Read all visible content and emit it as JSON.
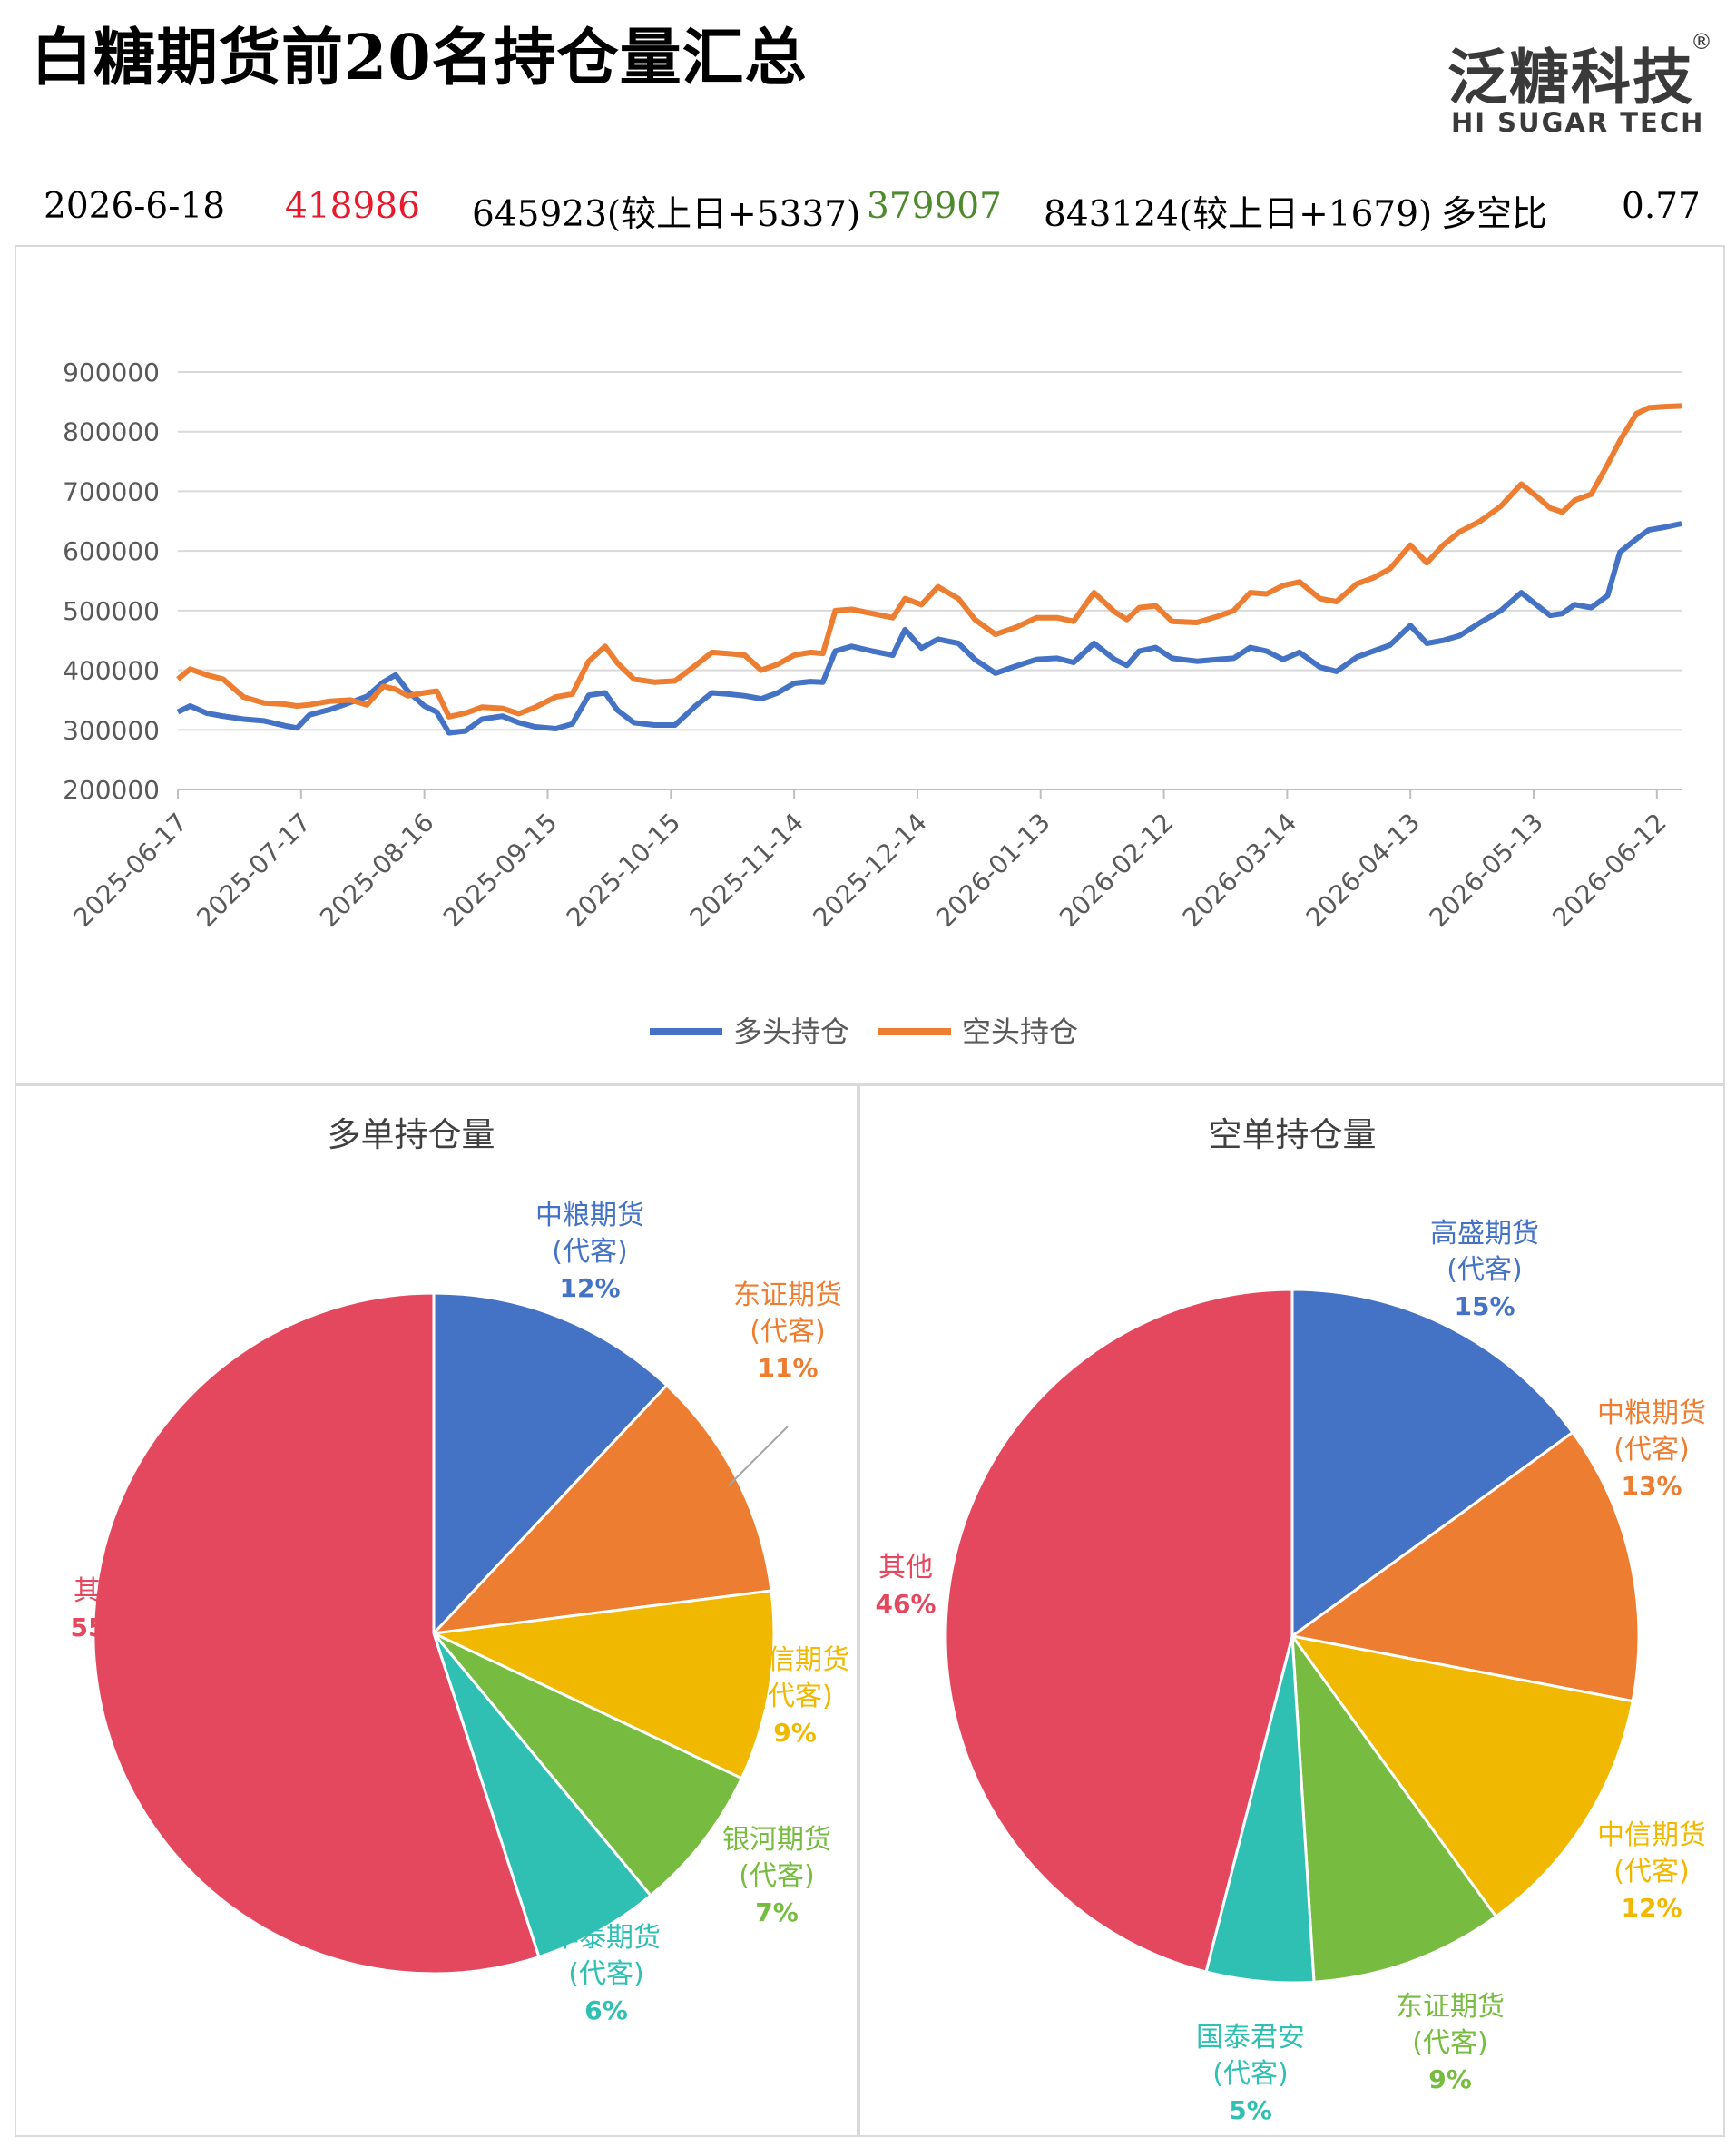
{
  "header": {
    "title": "白糖期货前20名持仓量汇总",
    "logo_cn": "泛糖科技",
    "logo_reg": "®",
    "logo_en": "HI SUGAR TECH"
  },
  "summary": {
    "date": "2026-6-18",
    "long_change": "418986",
    "long_total": "645923(较上日+5337)",
    "short_change": "379907",
    "short_total": "843124(较上日+1679)",
    "ratio_label": "多空比",
    "ratio_value": "0.77"
  },
  "colors": {
    "long": "#4472c4",
    "short": "#ed7d31",
    "red": "#e8192c",
    "green": "#4e8a2c",
    "grid": "#d9d9d9"
  },
  "chart_data": [
    {
      "type": "line",
      "title": "",
      "ylim": [
        200000,
        900000
      ],
      "yticks": [
        "900000",
        "800000",
        "700000",
        "600000",
        "500000",
        "400000",
        "300000",
        "200000"
      ],
      "xticks": [
        "2025-06-17",
        "2025-07-17",
        "2025-08-16",
        "2025-09-15",
        "2025-10-15",
        "2025-11-14",
        "2025-12-14",
        "2026-01-13",
        "2026-02-12",
        "2026-03-14",
        "2026-04-13",
        "2026-05-13",
        "2026-06-12"
      ],
      "legend_position": "bottom",
      "grid": true,
      "series": [
        {
          "name": "多头持仓",
          "color": "#4472c4",
          "points": [
            [
              "2025-06-17",
              330000
            ],
            [
              "2025-06-20",
              340000
            ],
            [
              "2025-06-24",
              328000
            ],
            [
              "2025-06-28",
              323000
            ],
            [
              "2025-07-03",
              318000
            ],
            [
              "2025-07-08",
              315000
            ],
            [
              "2025-07-13",
              307000
            ],
            [
              "2025-07-16",
              303000
            ],
            [
              "2025-07-19",
              325000
            ],
            [
              "2025-07-24",
              334000
            ],
            [
              "2025-07-29",
              346000
            ],
            [
              "2025-08-02",
              356000
            ],
            [
              "2025-08-06",
              380000
            ],
            [
              "2025-08-09",
              392000
            ],
            [
              "2025-08-12",
              365000
            ],
            [
              "2025-08-16",
              340000
            ],
            [
              "2025-08-19",
              330000
            ],
            [
              "2025-08-22",
              295000
            ],
            [
              "2025-08-26",
              298000
            ],
            [
              "2025-08-30",
              318000
            ],
            [
              "2025-09-04",
              323000
            ],
            [
              "2025-09-08",
              312000
            ],
            [
              "2025-09-12",
              305000
            ],
            [
              "2025-09-17",
              302000
            ],
            [
              "2025-09-21",
              310000
            ],
            [
              "2025-09-25",
              358000
            ],
            [
              "2025-09-29",
              362000
            ],
            [
              "2025-10-02",
              333000
            ],
            [
              "2025-10-06",
              312000
            ],
            [
              "2025-10-11",
              308000
            ],
            [
              "2025-10-16",
              308000
            ],
            [
              "2025-10-21",
              340000
            ],
            [
              "2025-10-25",
              362000
            ],
            [
              "2025-10-29",
              360000
            ],
            [
              "2025-11-02",
              357000
            ],
            [
              "2025-11-06",
              352000
            ],
            [
              "2025-11-10",
              362000
            ],
            [
              "2025-11-14",
              378000
            ],
            [
              "2025-11-18",
              381000
            ],
            [
              "2025-11-21",
              380000
            ],
            [
              "2025-11-24",
              432000
            ],
            [
              "2025-11-28",
              440000
            ],
            [
              "2025-12-03",
              432000
            ],
            [
              "2025-12-08",
              425000
            ],
            [
              "2025-12-11",
              468000
            ],
            [
              "2025-12-15",
              437000
            ],
            [
              "2025-12-19",
              452000
            ],
            [
              "2025-12-24",
              445000
            ],
            [
              "2025-12-28",
              418000
            ],
            [
              "2026-01-02",
              395000
            ],
            [
              "2026-01-07",
              407000
            ],
            [
              "2026-01-12",
              418000
            ],
            [
              "2026-01-17",
              420000
            ],
            [
              "2026-01-21",
              413000
            ],
            [
              "2026-01-26",
              445000
            ],
            [
              "2026-01-31",
              418000
            ],
            [
              "2026-02-03",
              408000
            ],
            [
              "2026-02-06",
              432000
            ],
            [
              "2026-02-10",
              438000
            ],
            [
              "2026-02-14",
              420000
            ],
            [
              "2026-02-20",
              415000
            ],
            [
              "2026-02-25",
              418000
            ],
            [
              "2026-03-01",
              420000
            ],
            [
              "2026-03-05",
              438000
            ],
            [
              "2026-03-09",
              432000
            ],
            [
              "2026-03-13",
              418000
            ],
            [
              "2026-03-17",
              430000
            ],
            [
              "2026-03-22",
              405000
            ],
            [
              "2026-03-26",
              398000
            ],
            [
              "2026-03-31",
              422000
            ],
            [
              "2026-04-04",
              432000
            ],
            [
              "2026-04-08",
              442000
            ],
            [
              "2026-04-13",
              475000
            ],
            [
              "2026-04-17",
              445000
            ],
            [
              "2026-04-21",
              450000
            ],
            [
              "2026-04-25",
              458000
            ],
            [
              "2026-04-30",
              480000
            ],
            [
              "2026-05-05",
              500000
            ],
            [
              "2026-05-10",
              530000
            ],
            [
              "2026-05-14",
              508000
            ],
            [
              "2026-05-17",
              492000
            ],
            [
              "2026-05-20",
              495000
            ],
            [
              "2026-05-23",
              510000
            ],
            [
              "2026-05-27",
              505000
            ],
            [
              "2026-05-31",
              525000
            ],
            [
              "2026-06-03",
              598000
            ],
            [
              "2026-06-07",
              620000
            ],
            [
              "2026-06-10",
              635000
            ],
            [
              "2026-06-14",
              640000
            ],
            [
              "2026-06-18",
              645923
            ]
          ]
        },
        {
          "name": "空头持仓",
          "color": "#ed7d31",
          "points": [
            [
              "2025-06-17",
              385000
            ],
            [
              "2025-06-20",
              402000
            ],
            [
              "2025-06-24",
              392000
            ],
            [
              "2025-06-28",
              385000
            ],
            [
              "2025-07-03",
              355000
            ],
            [
              "2025-07-08",
              345000
            ],
            [
              "2025-07-13",
              343000
            ],
            [
              "2025-07-16",
              340000
            ],
            [
              "2025-07-19",
              342000
            ],
            [
              "2025-07-24",
              348000
            ],
            [
              "2025-07-29",
              350000
            ],
            [
              "2025-08-02",
              342000
            ],
            [
              "2025-08-06",
              373000
            ],
            [
              "2025-08-09",
              368000
            ],
            [
              "2025-08-12",
              357000
            ],
            [
              "2025-08-16",
              362000
            ],
            [
              "2025-08-19",
              365000
            ],
            [
              "2025-08-22",
              322000
            ],
            [
              "2025-08-26",
              328000
            ],
            [
              "2025-08-30",
              338000
            ],
            [
              "2025-09-04",
              336000
            ],
            [
              "2025-09-08",
              327000
            ],
            [
              "2025-09-12",
              338000
            ],
            [
              "2025-09-17",
              355000
            ],
            [
              "2025-09-21",
              360000
            ],
            [
              "2025-09-25",
              415000
            ],
            [
              "2025-09-29",
              440000
            ],
            [
              "2025-10-02",
              412000
            ],
            [
              "2025-10-06",
              385000
            ],
            [
              "2025-10-11",
              380000
            ],
            [
              "2025-10-16",
              382000
            ],
            [
              "2025-10-21",
              408000
            ],
            [
              "2025-10-25",
              430000
            ],
            [
              "2025-10-29",
              428000
            ],
            [
              "2025-11-02",
              425000
            ],
            [
              "2025-11-06",
              400000
            ],
            [
              "2025-11-10",
              410000
            ],
            [
              "2025-11-14",
              425000
            ],
            [
              "2025-11-18",
              430000
            ],
            [
              "2025-11-21",
              428000
            ],
            [
              "2025-11-24",
              500000
            ],
            [
              "2025-11-28",
              502000
            ],
            [
              "2025-12-03",
              495000
            ],
            [
              "2025-12-08",
              488000
            ],
            [
              "2025-12-11",
              520000
            ],
            [
              "2025-12-15",
              510000
            ],
            [
              "2025-12-19",
              540000
            ],
            [
              "2025-12-24",
              520000
            ],
            [
              "2025-12-28",
              485000
            ],
            [
              "2026-01-02",
              460000
            ],
            [
              "2026-01-07",
              472000
            ],
            [
              "2026-01-12",
              488000
            ],
            [
              "2026-01-17",
              488000
            ],
            [
              "2026-01-21",
              482000
            ],
            [
              "2026-01-26",
              530000
            ],
            [
              "2026-01-31",
              498000
            ],
            [
              "2026-02-03",
              485000
            ],
            [
              "2026-02-06",
              505000
            ],
            [
              "2026-02-10",
              508000
            ],
            [
              "2026-02-14",
              482000
            ],
            [
              "2026-02-20",
              480000
            ],
            [
              "2026-02-25",
              490000
            ],
            [
              "2026-03-01",
              500000
            ],
            [
              "2026-03-05",
              530000
            ],
            [
              "2026-03-09",
              528000
            ],
            [
              "2026-03-13",
              542000
            ],
            [
              "2026-03-17",
              548000
            ],
            [
              "2026-03-22",
              520000
            ],
            [
              "2026-03-26",
              515000
            ],
            [
              "2026-03-31",
              545000
            ],
            [
              "2026-04-04",
              555000
            ],
            [
              "2026-04-08",
              570000
            ],
            [
              "2026-04-13",
              610000
            ],
            [
              "2026-04-17",
              580000
            ],
            [
              "2026-04-21",
              610000
            ],
            [
              "2026-04-25",
              632000
            ],
            [
              "2026-04-30",
              650000
            ],
            [
              "2026-05-05",
              675000
            ],
            [
              "2026-05-10",
              712000
            ],
            [
              "2026-05-14",
              690000
            ],
            [
              "2026-05-17",
              672000
            ],
            [
              "2026-05-20",
              665000
            ],
            [
              "2026-05-23",
              685000
            ],
            [
              "2026-05-27",
              695000
            ],
            [
              "2026-05-31",
              745000
            ],
            [
              "2026-06-03",
              785000
            ],
            [
              "2026-06-07",
              830000
            ],
            [
              "2026-06-10",
              840000
            ],
            [
              "2026-06-14",
              842000
            ],
            [
              "2026-06-18",
              843124
            ]
          ]
        }
      ]
    },
    {
      "type": "pie",
      "title": "多单持仓量",
      "slices": [
        {
          "label": "中粮期货",
          "sub": "(代客)",
          "pct": "12%",
          "value": 12,
          "color": "#4472c4"
        },
        {
          "label": "东证期货",
          "sub": "(代客)",
          "pct": "11%",
          "value": 11,
          "color": "#ed7d31"
        },
        {
          "label": "中信期货",
          "sub": "(代客)",
          "pct": "9%",
          "value": 9,
          "color": "#f0b800"
        },
        {
          "label": "银河期货",
          "sub": "(代客)",
          "pct": "7%",
          "value": 7,
          "color": "#77bc41"
        },
        {
          "label": "华泰期货",
          "sub": "(代客)",
          "pct": "6%",
          "value": 6,
          "color": "#2fc0b3"
        },
        {
          "label": "其他",
          "sub": "",
          "pct": "55%",
          "value": 55,
          "color": "#e4485f"
        }
      ]
    },
    {
      "type": "pie",
      "title": "空单持仓量",
      "slices": [
        {
          "label": "高盛期货",
          "sub": "(代客)",
          "pct": "15%",
          "value": 15,
          "color": "#4472c4"
        },
        {
          "label": "中粮期货",
          "sub": "(代客)",
          "pct": "13%",
          "value": 13,
          "color": "#ed7d31"
        },
        {
          "label": "中信期货",
          "sub": "(代客)",
          "pct": "12%",
          "value": 12,
          "color": "#f0b800"
        },
        {
          "label": "东证期货",
          "sub": "(代客)",
          "pct": "9%",
          "value": 9,
          "color": "#77bc41"
        },
        {
          "label": "国泰君安",
          "sub": "(代客)",
          "pct": "5%",
          "value": 5,
          "color": "#2fc0b3"
        },
        {
          "label": "其他",
          "sub": "",
          "pct": "46%",
          "value": 46,
          "color": "#e4485f"
        }
      ]
    }
  ]
}
